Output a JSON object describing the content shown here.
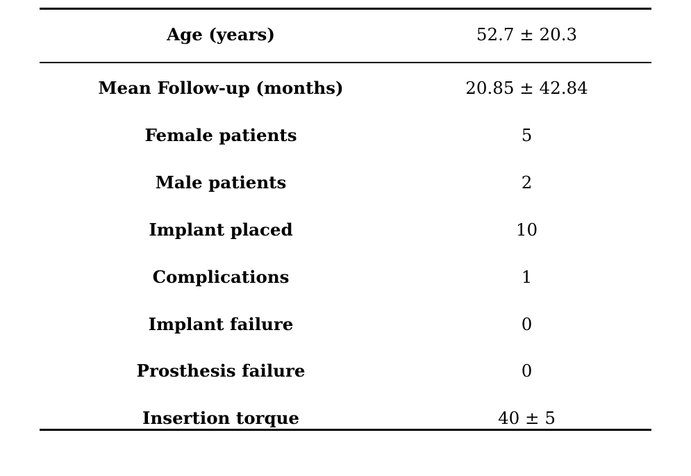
{
  "table": {
    "header": {
      "label": "Age (years)",
      "value": "52.7 ± 20.3"
    },
    "rows": [
      {
        "label": "Mean Follow-up (months)",
        "value": "20.85 ± 42.84"
      },
      {
        "label": "Female patients",
        "value": "5"
      },
      {
        "label": "Male patients",
        "value": "2"
      },
      {
        "label": "Implant placed",
        "value": "10"
      },
      {
        "label": "Complications",
        "value": "1"
      },
      {
        "label": "Implant failure",
        "value": "0"
      },
      {
        "label": "Prosthesis failure",
        "value": "0"
      },
      {
        "label": "Insertion torque",
        "value": "40 ± 5"
      }
    ]
  }
}
